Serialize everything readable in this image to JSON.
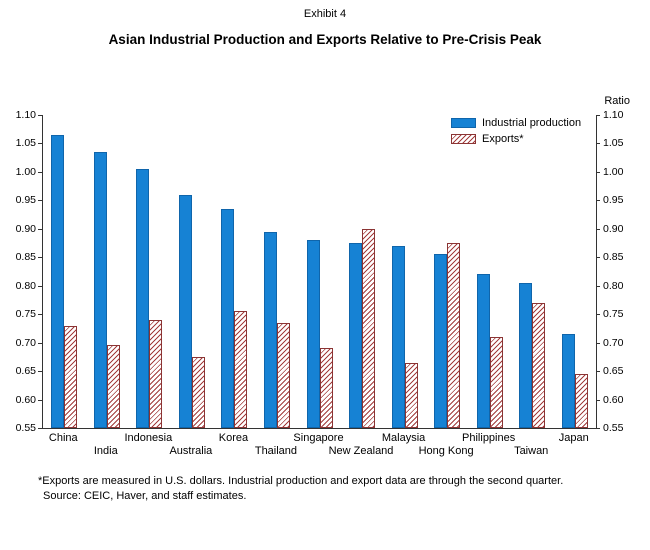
{
  "header": {
    "exhibit": "Exhibit 4",
    "title": "Asian Industrial Production and Exports Relative to Pre-Crisis Peak"
  },
  "axis": {
    "right_label": "Ratio"
  },
  "footnotes": {
    "line1": "*Exports are measured in U.S. dollars. Industrial production and export data are through the second quarter.",
    "line2": "Source: CEIC, Haver, and staff estimates."
  },
  "colors": {
    "industrial_production_bar": "#1682d4",
    "exports_hatch_line": "#a33c3c",
    "axis_line": "#333333"
  },
  "chart_data": {
    "type": "bar",
    "title": "Asian Industrial Production and Exports Relative to Pre-Crisis Peak",
    "categories": [
      "China",
      "India",
      "Indonesia",
      "Australia",
      "Korea",
      "Thailand",
      "Singapore",
      "New Zealand",
      "Malaysia",
      "Hong Kong",
      "Philippines",
      "Taiwan",
      "Japan"
    ],
    "series": [
      {
        "name": "Industrial production",
        "values": [
          1.065,
          1.035,
          1.005,
          0.96,
          0.935,
          0.895,
          0.88,
          0.875,
          0.87,
          0.855,
          0.82,
          0.805,
          0.715
        ]
      },
      {
        "name": "Exports*",
        "values": [
          0.73,
          0.695,
          0.74,
          0.675,
          0.755,
          0.735,
          0.69,
          0.9,
          0.665,
          0.875,
          0.71,
          0.77,
          0.645
        ]
      }
    ],
    "xlabel": "",
    "ylabel_right": "Ratio",
    "ylim": [
      0.55,
      1.1
    ],
    "yticks": [
      "0.55",
      "0.60",
      "0.65",
      "0.70",
      "0.75",
      "0.80",
      "0.85",
      "0.90",
      "0.95",
      "1.00",
      "1.05",
      "1.10"
    ],
    "grid": false,
    "legend_position": "top-right-inside"
  }
}
